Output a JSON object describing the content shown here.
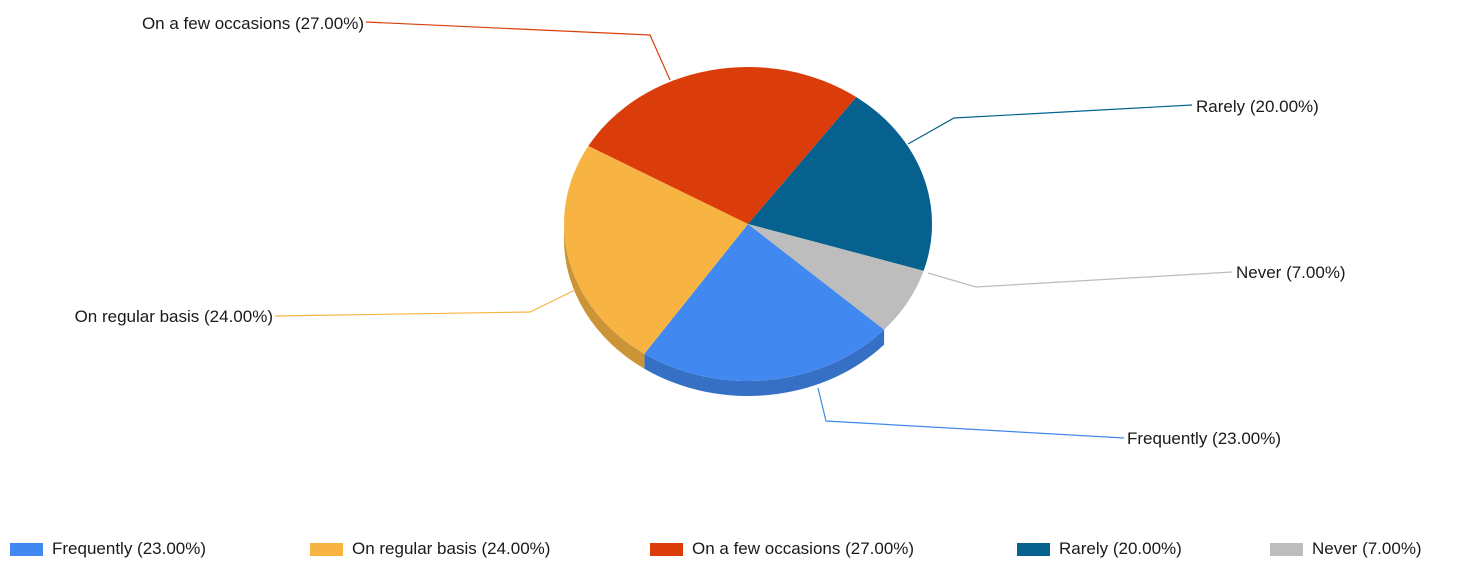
{
  "chart_data": {
    "type": "pie",
    "title": "",
    "slices": [
      {
        "label": "Frequently (23.00%)",
        "category": "Frequently",
        "value": 23,
        "color": "#4189f0"
      },
      {
        "label": "On regular basis (24.00%)",
        "category": "On regular basis",
        "value": 24,
        "color": "#f8b443"
      },
      {
        "label": "On a few occasions (27.00%)",
        "category": "On a few occasions",
        "value": 27,
        "color": "#db3d0a"
      },
      {
        "label": "Rarely (20.00%)",
        "category": "Rarely",
        "value": 20,
        "color": "#07618f"
      },
      {
        "label": "Never (7.00%)",
        "category": "Never",
        "value": 7,
        "color": "#bdbdbd"
      }
    ],
    "legend_position": "bottom",
    "style": "3d-pie-with-leader-lines"
  }
}
